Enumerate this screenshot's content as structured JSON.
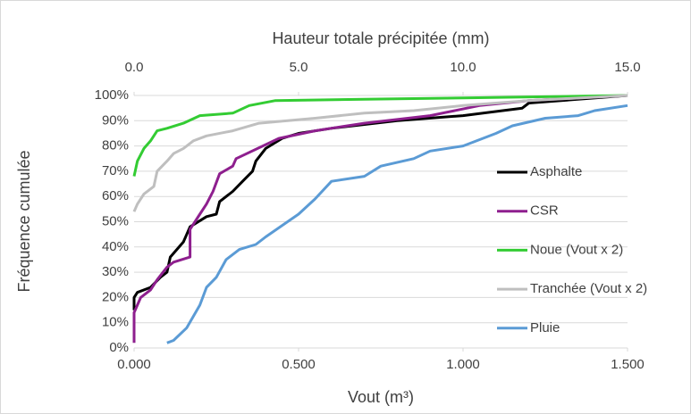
{
  "chart_data": {
    "type": "line",
    "title": "Hauteur totale précipitée (mm)",
    "x_label": "Vout (m³)",
    "y_label": "Fréquence cumulée",
    "xlim": [
      0,
      1.5
    ],
    "xticks": [
      {
        "value": 0,
        "label": "0.000"
      },
      {
        "value": 0.5,
        "label": "0.500"
      },
      {
        "value": 1,
        "label": "1.000"
      },
      {
        "value": 1.5,
        "label": "1.500"
      }
    ],
    "x2lim": [
      0,
      15
    ],
    "x2ticks": [
      {
        "value": 0,
        "label": "0.0"
      },
      {
        "value": 5,
        "label": "5.0"
      },
      {
        "value": 10,
        "label": "10.0"
      },
      {
        "value": 15,
        "label": "15.0"
      }
    ],
    "ylim": [
      0,
      100
    ],
    "yticks": [
      {
        "value": 0,
        "label": "0%"
      },
      {
        "value": 10,
        "label": "10%"
      },
      {
        "value": 20,
        "label": "20%"
      },
      {
        "value": 30,
        "label": "30%"
      },
      {
        "value": 40,
        "label": "40%"
      },
      {
        "value": 50,
        "label": "50%"
      },
      {
        "value": 60,
        "label": "60%"
      },
      {
        "value": 70,
        "label": "70%"
      },
      {
        "value": 80,
        "label": "80%"
      },
      {
        "value": 90,
        "label": "90%"
      },
      {
        "value": 100,
        "label": "100%"
      }
    ],
    "grid": true,
    "legend": "right",
    "series": [
      {
        "name": "Asphalte",
        "color": "#000000",
        "x": [
          0,
          0,
          0.01,
          0.05,
          0.08,
          0.1,
          0.11,
          0.15,
          0.17,
          0.22,
          0.25,
          0.26,
          0.3,
          0.33,
          0.36,
          0.37,
          0.4,
          0.45,
          0.5,
          0.6,
          0.8,
          1.0,
          1.18,
          1.2,
          1.5
        ],
        "values": [
          15,
          20,
          22,
          24,
          28,
          30,
          36,
          42,
          48,
          52,
          53,
          58,
          62,
          66,
          70,
          74,
          79,
          83,
          85,
          87,
          90,
          92,
          95,
          97,
          100
        ]
      },
      {
        "name": "CSR",
        "color": "#8e1f8e",
        "x": [
          0,
          0,
          0.01,
          0.02,
          0.05,
          0.07,
          0.1,
          0.12,
          0.17,
          0.17,
          0.2,
          0.22,
          0.24,
          0.26,
          0.3,
          0.31,
          0.44,
          0.55,
          0.7,
          0.9,
          1.05,
          1.2,
          1.5
        ],
        "values": [
          2,
          14,
          17,
          20,
          23,
          27,
          32,
          34,
          36,
          47,
          53,
          57,
          62,
          69,
          72,
          75,
          83,
          86,
          89,
          92,
          96,
          98,
          100
        ]
      },
      {
        "name": "Noue (Vout x 2)",
        "color": "#33cc33",
        "x": [
          0,
          0.01,
          0.03,
          0.05,
          0.07,
          0.1,
          0.15,
          0.2,
          0.3,
          0.35,
          0.43,
          0.7,
          1.0,
          1.5
        ],
        "values": [
          68,
          74,
          79,
          82,
          86,
          87,
          89,
          92,
          93,
          96,
          98,
          98.5,
          99,
          100
        ]
      },
      {
        "name": "Tranchée (Vout x 2)",
        "color": "#bfbfbf",
        "x": [
          0,
          0.01,
          0.03,
          0.06,
          0.07,
          0.1,
          0.12,
          0.15,
          0.18,
          0.22,
          0.3,
          0.38,
          0.55,
          0.7,
          0.85,
          1.0,
          1.2,
          1.5
        ],
        "values": [
          54,
          57,
          61,
          64,
          70,
          74,
          77,
          79,
          82,
          84,
          86,
          89,
          91,
          93,
          94,
          96,
          98,
          100
        ]
      },
      {
        "name": "Pluie",
        "color": "#5b9bd5",
        "x": [
          0.1,
          0.12,
          0.16,
          0.2,
          0.22,
          0.25,
          0.28,
          0.32,
          0.37,
          0.4,
          0.5,
          0.55,
          0.6,
          0.7,
          0.75,
          0.85,
          0.9,
          1.0,
          1.1,
          1.15,
          1.25,
          1.35,
          1.4,
          1.5
        ],
        "values": [
          2,
          3,
          8,
          17,
          24,
          28,
          35,
          39,
          41,
          44,
          53,
          59,
          66,
          68,
          72,
          75,
          78,
          80,
          85,
          88,
          91,
          92,
          94,
          96
        ]
      }
    ]
  }
}
